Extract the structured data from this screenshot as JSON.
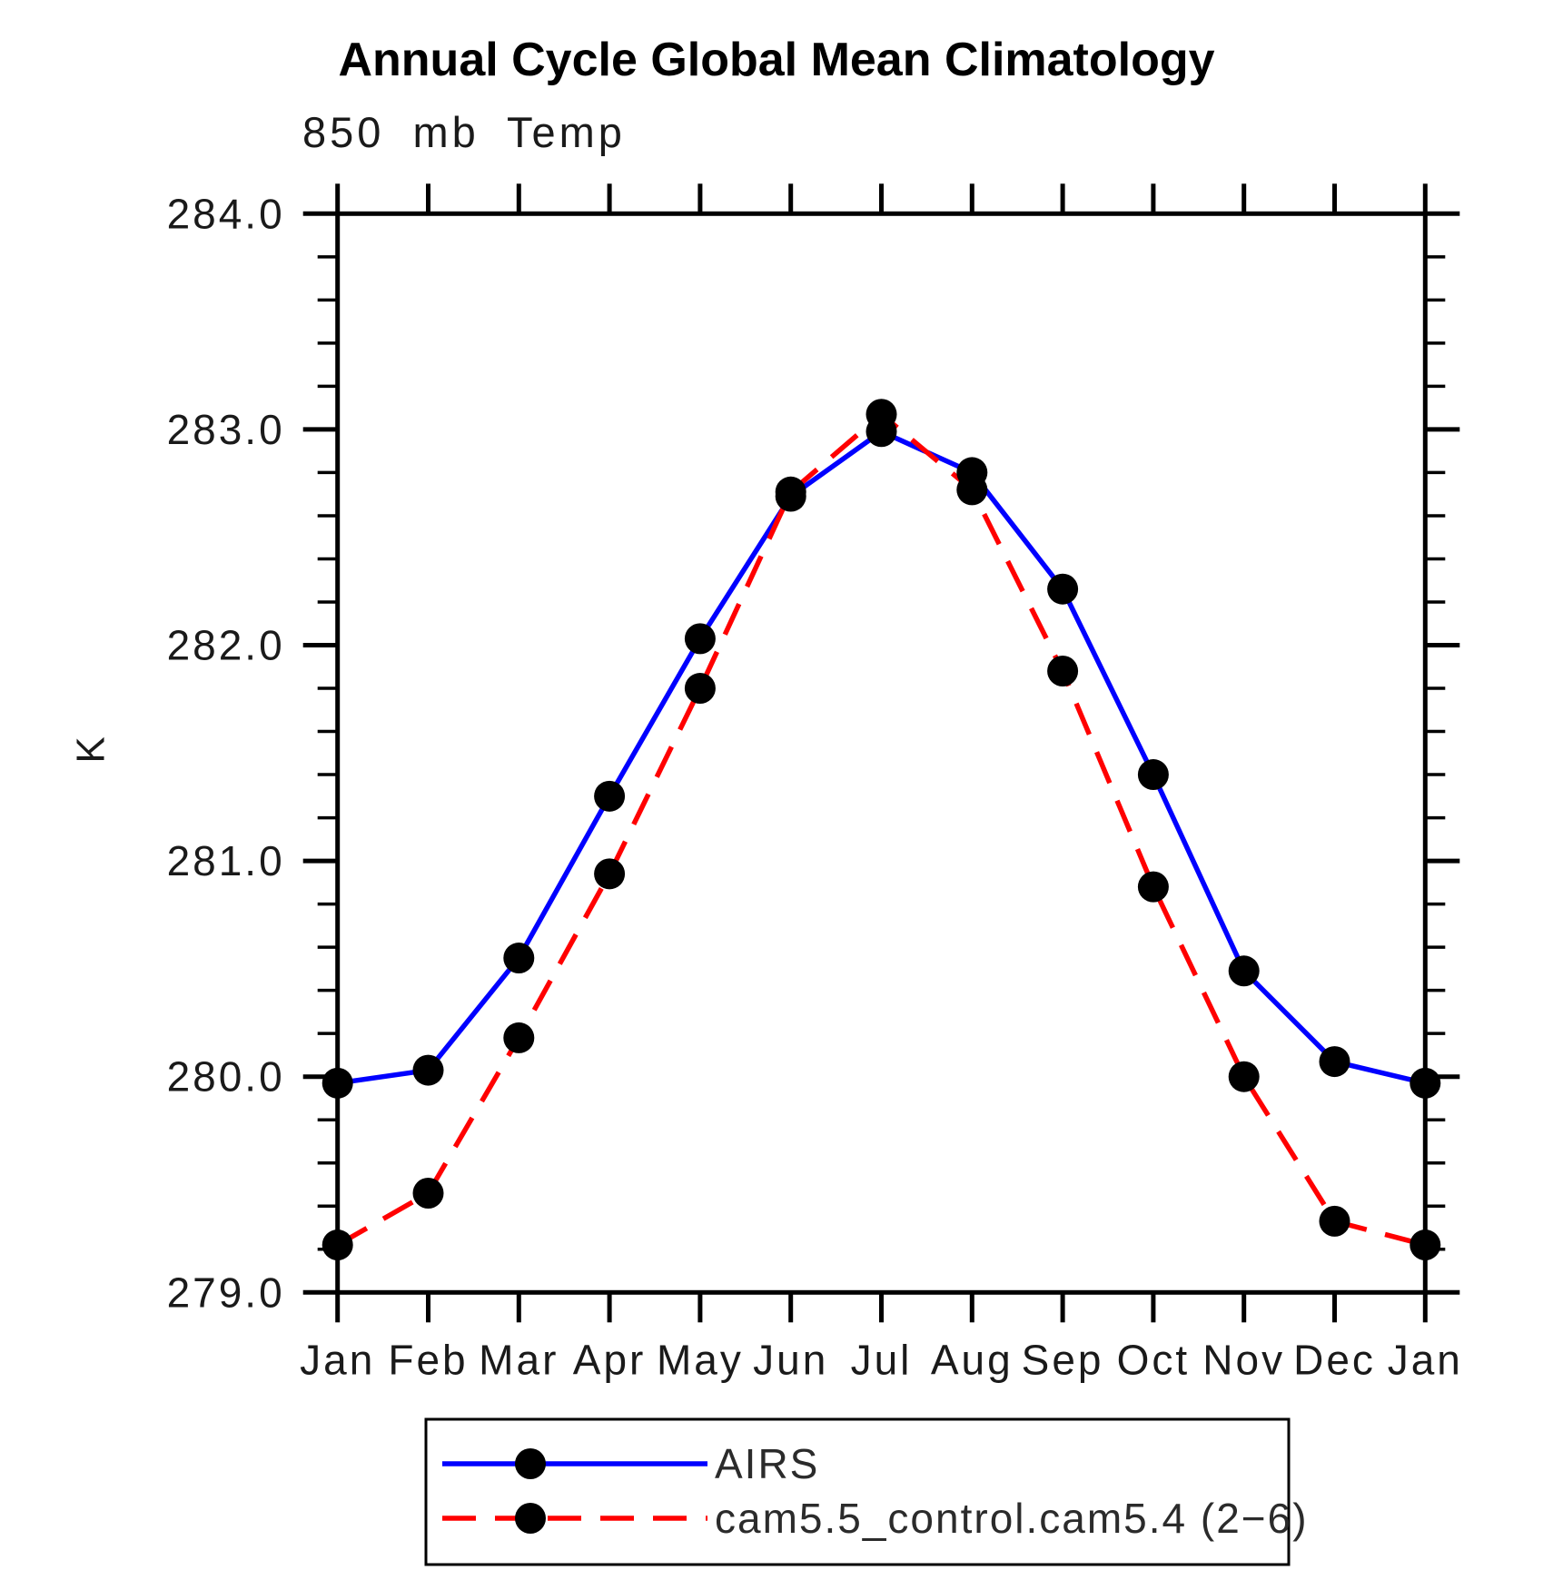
{
  "chart_data": {
    "type": "line",
    "title": "Annual Cycle Global Mean Climatology",
    "subtitle": "850 mb Temp",
    "ylabel": "K",
    "xlabel": "",
    "x_categories": [
      "Jan",
      "Feb",
      "Mar",
      "Apr",
      "May",
      "Jun",
      "Jul",
      "Aug",
      "Sep",
      "Oct",
      "Nov",
      "Dec",
      "Jan"
    ],
    "ylim": [
      279.0,
      284.0
    ],
    "y_major_tick_labels": [
      "284.0",
      "283.0",
      "282.0",
      "281.0",
      "280.0",
      "279.0"
    ],
    "y_major_step": 1.0,
    "y_minor_step": 0.2,
    "grid": false,
    "legend_position": "bottom",
    "axis_color": "#000000",
    "background_color": "#ffffff",
    "marker_color": "#000000",
    "series": [
      {
        "name": "AIRS",
        "color": "#0000ff",
        "line_style": "solid",
        "marker": "filled-circle",
        "values": [
          279.97,
          280.03,
          280.55,
          281.3,
          282.03,
          282.69,
          282.99,
          282.8,
          282.26,
          281.4,
          280.49,
          280.07,
          279.97
        ]
      },
      {
        "name": "cam5.5_control.cam5.4 (2−6)",
        "color": "#ff0000",
        "line_style": "dashed",
        "marker": "filled-circle",
        "values": [
          279.22,
          279.46,
          280.18,
          280.94,
          281.8,
          282.71,
          283.07,
          282.72,
          281.88,
          280.88,
          280.0,
          279.33,
          279.22
        ]
      }
    ]
  }
}
